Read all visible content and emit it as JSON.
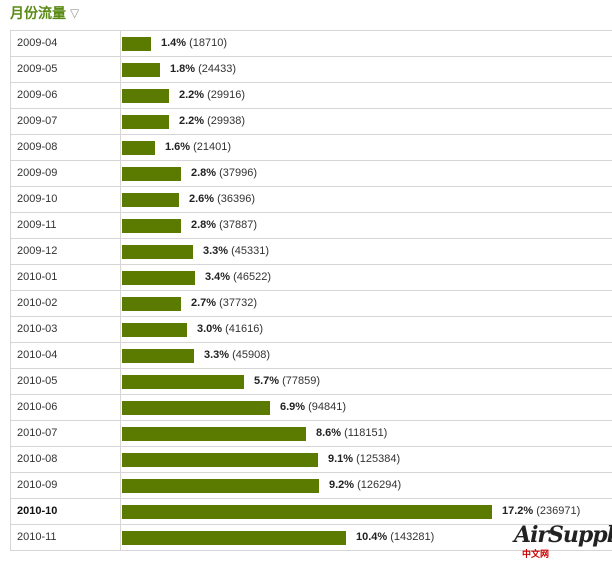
{
  "header": {
    "title": "月份流量",
    "toggle_icon": "▽"
  },
  "watermark": {
    "text": "AirSupply",
    "sub": "中文网"
  },
  "chart_data": {
    "type": "bar",
    "title": "月份流量",
    "highlight": "2010-10",
    "rows": [
      {
        "month": "2009-04",
        "percent": "1.4%",
        "count": "(18710)",
        "value": 18710
      },
      {
        "month": "2009-05",
        "percent": "1.8%",
        "count": "(24433)",
        "value": 24433
      },
      {
        "month": "2009-06",
        "percent": "2.2%",
        "count": "(29916)",
        "value": 29916
      },
      {
        "month": "2009-07",
        "percent": "2.2%",
        "count": "(29938)",
        "value": 29938
      },
      {
        "month": "2009-08",
        "percent": "1.6%",
        "count": "(21401)",
        "value": 21401
      },
      {
        "month": "2009-09",
        "percent": "2.8%",
        "count": "(37996)",
        "value": 37996
      },
      {
        "month": "2009-10",
        "percent": "2.6%",
        "count": "(36396)",
        "value": 36396
      },
      {
        "month": "2009-11",
        "percent": "2.8%",
        "count": "(37887)",
        "value": 37887
      },
      {
        "month": "2009-12",
        "percent": "3.3%",
        "count": "(45331)",
        "value": 45331
      },
      {
        "month": "2010-01",
        "percent": "3.4%",
        "count": "(46522)",
        "value": 46522
      },
      {
        "month": "2010-02",
        "percent": "2.7%",
        "count": "(37732)",
        "value": 37732
      },
      {
        "month": "2010-03",
        "percent": "3.0%",
        "count": "(41616)",
        "value": 41616
      },
      {
        "month": "2010-04",
        "percent": "3.3%",
        "count": "(45908)",
        "value": 45908
      },
      {
        "month": "2010-05",
        "percent": "5.7%",
        "count": "(77859)",
        "value": 77859
      },
      {
        "month": "2010-06",
        "percent": "6.9%",
        "count": "(94841)",
        "value": 94841
      },
      {
        "month": "2010-07",
        "percent": "8.6%",
        "count": "(118151)",
        "value": 118151
      },
      {
        "month": "2010-08",
        "percent": "9.1%",
        "count": "(125384)",
        "value": 125384
      },
      {
        "month": "2010-09",
        "percent": "9.2%",
        "count": "(126294)",
        "value": 126294
      },
      {
        "month": "2010-10",
        "percent": "17.2%",
        "count": "(236971)",
        "value": 236971
      },
      {
        "month": "2010-11",
        "percent": "10.4%",
        "count": "(143281)",
        "value": 143281
      }
    ]
  },
  "colors": {
    "bar": "#5b7a00",
    "title": "#5a8a14"
  }
}
